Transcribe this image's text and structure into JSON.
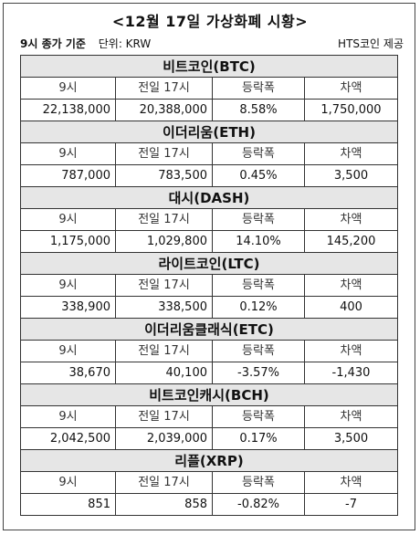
{
  "title": "<12월 17일 가상화폐 시황>",
  "meta": {
    "basis": "9시 종가 기준",
    "unit": "단위: KRW",
    "source": "HTS코인 제공"
  },
  "columns": [
    "9시",
    "전일 17시",
    "등락폭",
    "차액"
  ],
  "coins": [
    {
      "name": "비트코인(BTC)",
      "values": [
        "22,138,000",
        "20,388,000",
        "8.58%",
        "1,750,000"
      ]
    },
    {
      "name": "이더리움(ETH)",
      "values": [
        "787,000",
        "783,500",
        "0.45%",
        "3,500"
      ]
    },
    {
      "name": "대시(DASH)",
      "values": [
        "1,175,000",
        "1,029,800",
        "14.10%",
        "145,200"
      ]
    },
    {
      "name": "라이트코인(LTC)",
      "values": [
        "338,900",
        "338,500",
        "0.12%",
        "400"
      ]
    },
    {
      "name": "이더리움클래식(ETC)",
      "values": [
        "38,670",
        "40,100",
        "-3.57%",
        "-1,430"
      ]
    },
    {
      "name": "비트코인캐시(BCH)",
      "values": [
        "2,042,500",
        "2,039,000",
        "0.17%",
        "3,500"
      ]
    },
    {
      "name": "리플(XRP)",
      "values": [
        "851",
        "858",
        "-0.82%",
        "-7"
      ]
    }
  ]
}
